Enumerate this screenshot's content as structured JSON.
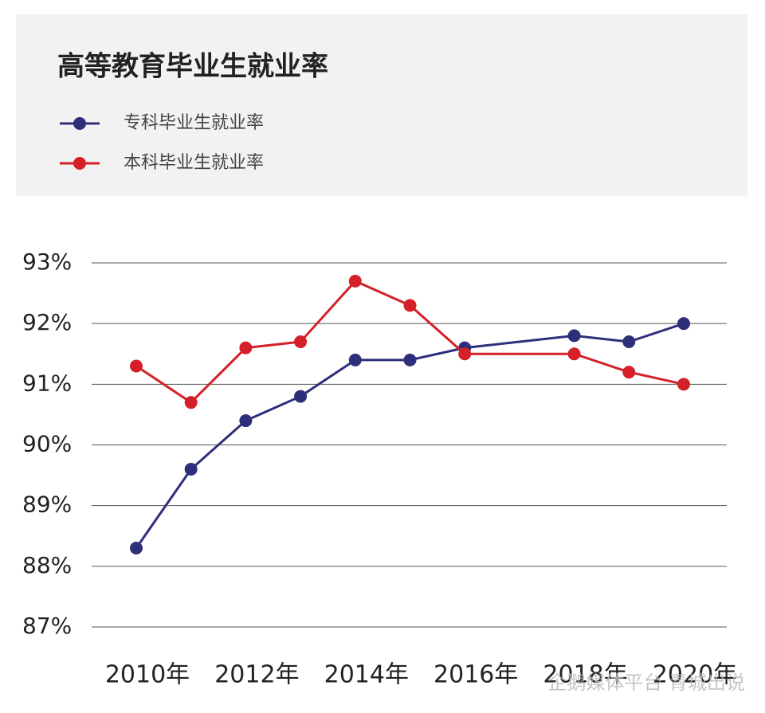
{
  "chart_data": {
    "type": "line",
    "title": "高等教育毕业生就业率",
    "x": [
      2010,
      2011,
      2012,
      2013,
      2014,
      2015,
      2016,
      2018,
      2019,
      2020
    ],
    "series": [
      {
        "name": "专科毕业生就业率",
        "color": "#2e2f7a",
        "values": [
          88.3,
          89.6,
          90.4,
          90.8,
          91.4,
          91.4,
          91.6,
          91.8,
          91.7,
          92.0
        ]
      },
      {
        "name": "本科毕业生就业率",
        "color": "#d42028",
        "values": [
          91.3,
          90.7,
          91.6,
          91.7,
          92.7,
          92.3,
          91.5,
          91.5,
          91.2,
          91.0
        ]
      }
    ],
    "xlim": [
      2010,
      2020
    ],
    "xticks": [
      {
        "value": 2010,
        "label": "2010年"
      },
      {
        "value": 2012,
        "label": "2012年"
      },
      {
        "value": 2014,
        "label": "2014年"
      },
      {
        "value": 2016,
        "label": "2016年"
      },
      {
        "value": 2018,
        "label": "2018年"
      },
      {
        "value": 2020,
        "label": "2020年"
      }
    ],
    "ylim": [
      87,
      93
    ],
    "yticks": [
      {
        "value": 87,
        "label": "87%"
      },
      {
        "value": 88,
        "label": "88%"
      },
      {
        "value": 89,
        "label": "89%"
      },
      {
        "value": 90,
        "label": "90%"
      },
      {
        "value": 91,
        "label": "91%"
      },
      {
        "value": 92,
        "label": "92%"
      },
      {
        "value": 93,
        "label": "93%"
      }
    ],
    "grid": true,
    "watermark": "企鹅媒体平台 青城出说"
  }
}
